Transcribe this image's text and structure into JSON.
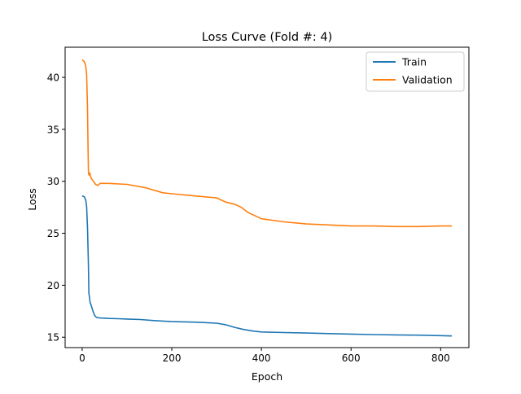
{
  "chart_data": {
    "type": "line",
    "title": "Loss Curve (Fold #: 4)",
    "xlabel": "Epoch",
    "ylabel": "Loss",
    "xlim": [
      -38,
      863
    ],
    "ylim": [
      14.0,
      42.9
    ],
    "xticks": [
      0,
      200,
      400,
      600,
      800
    ],
    "yticks": [
      15,
      20,
      25,
      30,
      35,
      40
    ],
    "grid": false,
    "legend_position": "upper right",
    "series": [
      {
        "name": "Train",
        "color": "#1f77b4",
        "points": [
          [
            0,
            28.6
          ],
          [
            5,
            28.5
          ],
          [
            8,
            28.2
          ],
          [
            10,
            27.6
          ],
          [
            12,
            25.5
          ],
          [
            14,
            22.0
          ],
          [
            15,
            19.2
          ],
          [
            16,
            19.0
          ],
          [
            17,
            18.6
          ],
          [
            18,
            18.3
          ],
          [
            20,
            18.1
          ],
          [
            22,
            17.8
          ],
          [
            25,
            17.4
          ],
          [
            28,
            17.1
          ],
          [
            32,
            16.9
          ],
          [
            40,
            16.85
          ],
          [
            60,
            16.8
          ],
          [
            80,
            16.78
          ],
          [
            100,
            16.75
          ],
          [
            130,
            16.7
          ],
          [
            160,
            16.6
          ],
          [
            200,
            16.5
          ],
          [
            250,
            16.45
          ],
          [
            300,
            16.35
          ],
          [
            320,
            16.2
          ],
          [
            340,
            15.95
          ],
          [
            360,
            15.75
          ],
          [
            380,
            15.6
          ],
          [
            400,
            15.5
          ],
          [
            450,
            15.45
          ],
          [
            500,
            15.4
          ],
          [
            550,
            15.35
          ],
          [
            600,
            15.3
          ],
          [
            650,
            15.25
          ],
          [
            700,
            15.22
          ],
          [
            750,
            15.2
          ],
          [
            800,
            15.15
          ],
          [
            825,
            15.12
          ]
        ]
      },
      {
        "name": "Validation",
        "color": "#ff7f0e",
        "points": [
          [
            0,
            41.7
          ],
          [
            5,
            41.5
          ],
          [
            8,
            41.1
          ],
          [
            10,
            40.3
          ],
          [
            12,
            37.0
          ],
          [
            13,
            33.5
          ],
          [
            14,
            31.0
          ],
          [
            15,
            30.6
          ],
          [
            17,
            30.8
          ],
          [
            20,
            30.3
          ],
          [
            25,
            30.0
          ],
          [
            30,
            29.7
          ],
          [
            35,
            29.6
          ],
          [
            40,
            29.8
          ],
          [
            60,
            29.8
          ],
          [
            100,
            29.7
          ],
          [
            140,
            29.4
          ],
          [
            180,
            28.9
          ],
          [
            200,
            28.8
          ],
          [
            250,
            28.6
          ],
          [
            300,
            28.4
          ],
          [
            320,
            28.0
          ],
          [
            340,
            27.8
          ],
          [
            355,
            27.5
          ],
          [
            370,
            27.0
          ],
          [
            385,
            26.7
          ],
          [
            400,
            26.4
          ],
          [
            450,
            26.1
          ],
          [
            500,
            25.9
          ],
          [
            550,
            25.8
          ],
          [
            600,
            25.7
          ],
          [
            650,
            25.7
          ],
          [
            700,
            25.65
          ],
          [
            750,
            25.65
          ],
          [
            800,
            25.7
          ],
          [
            825,
            25.7
          ]
        ]
      }
    ]
  }
}
